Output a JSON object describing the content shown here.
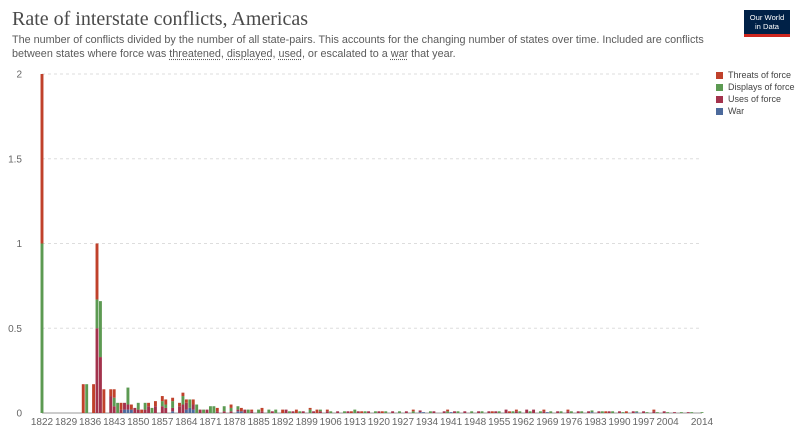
{
  "header": {
    "title": "Rate of interstate conflicts, Americas",
    "subtitle_lead": "The number of conflicts divided by the number of all state-pairs. This accounts for the changing number of states over time. Included are conflicts between states where force was",
    "subtitle_links": [
      "threatened",
      "displayed",
      "used"
    ],
    "subtitle_sep1": ",",
    "subtitle_sep2": ",",
    "subtitle_sep3": ", or escalated to a",
    "subtitle_war": "war",
    "subtitle_tail": "that year.",
    "logo_line1": "Our World",
    "logo_line2": "in Data"
  },
  "colors": {
    "threats": "#c0412b",
    "displays": "#5c9a52",
    "uses": "#a3324c",
    "war": "#4c6a9c",
    "grid": "#dddddd",
    "logo_bg": "#002147",
    "logo_accent": "#ce261e"
  },
  "chart_data": {
    "type": "bar",
    "stacked": true,
    "x_ticks": [
      "1822",
      "1829",
      "1836",
      "1843",
      "1850",
      "1857",
      "1864",
      "1871",
      "1878",
      "1885",
      "1892",
      "1899",
      "1906",
      "1913",
      "1920",
      "1927",
      "1934",
      "1941",
      "1948",
      "1955",
      "1962",
      "1969",
      "1976",
      "1983",
      "1990",
      "1997",
      "2004",
      "2014"
    ],
    "y_ticks": [
      "0",
      "0.5",
      "1",
      "1.5",
      "2"
    ],
    "ylim": [
      0,
      2
    ],
    "xlim": [
      1822,
      2014
    ],
    "legend": {
      "position": "top-right",
      "entries": [
        "Threats of force",
        "Displays of force",
        "Uses of force",
        "War"
      ]
    },
    "series": [
      {
        "name": "Threats of force",
        "key": "threats",
        "values": [
          [
            1822,
            1.0
          ],
          [
            1834,
            0.17
          ],
          [
            1837,
            0.17
          ],
          [
            1838,
            0.33
          ],
          [
            1840,
            0.14
          ],
          [
            1842,
            0.04
          ],
          [
            1843,
            0.05
          ],
          [
            1845,
            0.04
          ],
          [
            1848,
            0.03
          ],
          [
            1851,
            0.02
          ],
          [
            1853,
            0.02
          ],
          [
            1855,
            0.03
          ],
          [
            1857,
            0.03
          ],
          [
            1858,
            0.03
          ],
          [
            1860,
            0.02
          ],
          [
            1862,
            0.02
          ],
          [
            1863,
            0.02
          ],
          [
            1864,
            0.02
          ],
          [
            1866,
            0.03
          ],
          [
            1873,
            0.02
          ],
          [
            1877,
            0.02
          ],
          [
            1880,
            0.02
          ],
          [
            1883,
            0.01
          ],
          [
            1886,
            0.02
          ],
          [
            1892,
            0.02
          ],
          [
            1896,
            0.02
          ],
          [
            1900,
            0.01
          ],
          [
            1902,
            0.02
          ],
          [
            1905,
            0.01
          ],
          [
            1912,
            0.01
          ],
          [
            1915,
            0.01
          ],
          [
            1921,
            0.01
          ],
          [
            1930,
            0.01
          ],
          [
            1940,
            0.01
          ],
          [
            1953,
            0.01
          ],
          [
            1958,
            0.01
          ],
          [
            1960,
            0.01
          ],
          [
            1968,
            0.01
          ],
          [
            1975,
            0.01
          ],
          [
            1986,
            0.01
          ],
          [
            1992,
            0.01
          ],
          [
            2000,
            0.01
          ]
        ]
      },
      {
        "name": "Displays of force",
        "key": "displays",
        "values": [
          [
            1822,
            1.0
          ],
          [
            1835,
            0.17
          ],
          [
            1838,
            0.17
          ],
          [
            1839,
            0.33
          ],
          [
            1843,
            0.05
          ],
          [
            1844,
            0.06
          ],
          [
            1847,
            0.1
          ],
          [
            1850,
            0.04
          ],
          [
            1852,
            0.04
          ],
          [
            1854,
            0.03
          ],
          [
            1857,
            0.03
          ],
          [
            1858,
            0.02
          ],
          [
            1860,
            0.04
          ],
          [
            1863,
            0.05
          ],
          [
            1865,
            0.05
          ],
          [
            1867,
            0.05
          ],
          [
            1869,
            0.02
          ],
          [
            1871,
            0.04
          ],
          [
            1872,
            0.04
          ],
          [
            1875,
            0.03
          ],
          [
            1877,
            0.02
          ],
          [
            1879,
            0.02
          ],
          [
            1882,
            0.02
          ],
          [
            1885,
            0.02
          ],
          [
            1888,
            0.02
          ],
          [
            1890,
            0.02
          ],
          [
            1894,
            0.01
          ],
          [
            1897,
            0.01
          ],
          [
            1900,
            0.02
          ],
          [
            1903,
            0.01
          ],
          [
            1906,
            0.01
          ],
          [
            1910,
            0.01
          ],
          [
            1913,
            0.02
          ],
          [
            1916,
            0.01
          ],
          [
            1919,
            0.01
          ],
          [
            1922,
            0.01
          ],
          [
            1926,
            0.01
          ],
          [
            1930,
            0.01
          ],
          [
            1935,
            0.01
          ],
          [
            1940,
            0.01
          ],
          [
            1943,
            0.01
          ],
          [
            1947,
            0.01
          ],
          [
            1950,
            0.01
          ],
          [
            1955,
            0.01
          ],
          [
            1959,
            0.01
          ],
          [
            1961,
            0.01
          ],
          [
            1964,
            0.01
          ],
          [
            1967,
            0.01
          ],
          [
            1970,
            0.01
          ],
          [
            1973,
            0.01
          ],
          [
            1976,
            0.01
          ],
          [
            1979,
            0.01
          ],
          [
            1982,
            0.01
          ],
          [
            1985,
            0.01
          ],
          [
            1988,
            0.01
          ],
          [
            1991,
            0.005
          ],
          [
            1995,
            0.005
          ],
          [
            1998,
            0.005
          ],
          [
            2001,
            0.005
          ],
          [
            2004,
            0.005
          ],
          [
            2008,
            0.005
          ],
          [
            2011,
            0.005
          ],
          [
            2014,
            0.005
          ]
        ]
      },
      {
        "name": "Uses of force",
        "key": "uses",
        "values": [
          [
            1838,
            0.5
          ],
          [
            1839,
            0.33
          ],
          [
            1840,
            0.0
          ],
          [
            1842,
            0.1
          ],
          [
            1843,
            0.04
          ],
          [
            1845,
            0.02
          ],
          [
            1846,
            0.04
          ],
          [
            1847,
            0.03
          ],
          [
            1849,
            0.03
          ],
          [
            1850,
            0.02
          ],
          [
            1852,
            0.02
          ],
          [
            1853,
            0.04
          ],
          [
            1855,
            0.04
          ],
          [
            1857,
            0.04
          ],
          [
            1858,
            0.03
          ],
          [
            1860,
            0.02
          ],
          [
            1862,
            0.04
          ],
          [
            1863,
            0.05
          ],
          [
            1864,
            0.04
          ],
          [
            1866,
            0.03
          ],
          [
            1868,
            0.02
          ],
          [
            1870,
            0.02
          ],
          [
            1873,
            0.01
          ],
          [
            1875,
            0.01
          ],
          [
            1877,
            0.01
          ],
          [
            1879,
            0.01
          ],
          [
            1881,
            0.02
          ],
          [
            1883,
            0.01
          ],
          [
            1886,
            0.01
          ],
          [
            1889,
            0.01
          ],
          [
            1893,
            0.02
          ],
          [
            1895,
            0.01
          ],
          [
            1898,
            0.01
          ],
          [
            1901,
            0.01
          ],
          [
            1903,
            0.01
          ],
          [
            1905,
            0.01
          ],
          [
            1908,
            0.01
          ],
          [
            1911,
            0.01
          ],
          [
            1914,
            0.01
          ],
          [
            1917,
            0.01
          ],
          [
            1920,
            0.01
          ],
          [
            1924,
            0.01
          ],
          [
            1928,
            0.01
          ],
          [
            1932,
            0.01
          ],
          [
            1936,
            0.01
          ],
          [
            1939,
            0.01
          ],
          [
            1942,
            0.01
          ],
          [
            1945,
            0.01
          ],
          [
            1949,
            0.01
          ],
          [
            1952,
            0.01
          ],
          [
            1954,
            0.01
          ],
          [
            1957,
            0.02
          ],
          [
            1960,
            0.01
          ],
          [
            1963,
            0.02
          ],
          [
            1965,
            0.02
          ],
          [
            1968,
            0.01
          ],
          [
            1972,
            0.01
          ],
          [
            1975,
            0.01
          ],
          [
            1978,
            0.01
          ],
          [
            1981,
            0.01
          ],
          [
            1984,
            0.01
          ],
          [
            1987,
            0.01
          ],
          [
            1990,
            0.01
          ],
          [
            1994,
            0.01
          ],
          [
            1997,
            0.01
          ],
          [
            2000,
            0.01
          ],
          [
            2003,
            0.01
          ],
          [
            2006,
            0.005
          ],
          [
            2010,
            0.005
          ]
        ]
      },
      {
        "name": "War",
        "key": "war",
        "values": [
          [
            1846,
            0.02
          ],
          [
            1847,
            0.02
          ],
          [
            1848,
            0.02
          ],
          [
            1860,
            0.01
          ],
          [
            1864,
            0.02
          ],
          [
            1865,
            0.03
          ],
          [
            1866,
            0.02
          ],
          [
            1879,
            0.01
          ],
          [
            1880,
            0.01
          ],
          [
            1932,
            0.005
          ],
          [
            1933,
            0.005
          ],
          [
            1941,
            0.005
          ],
          [
            1969,
            0.005
          ],
          [
            1982,
            0.005
          ],
          [
            1995,
            0.005
          ]
        ]
      }
    ]
  }
}
